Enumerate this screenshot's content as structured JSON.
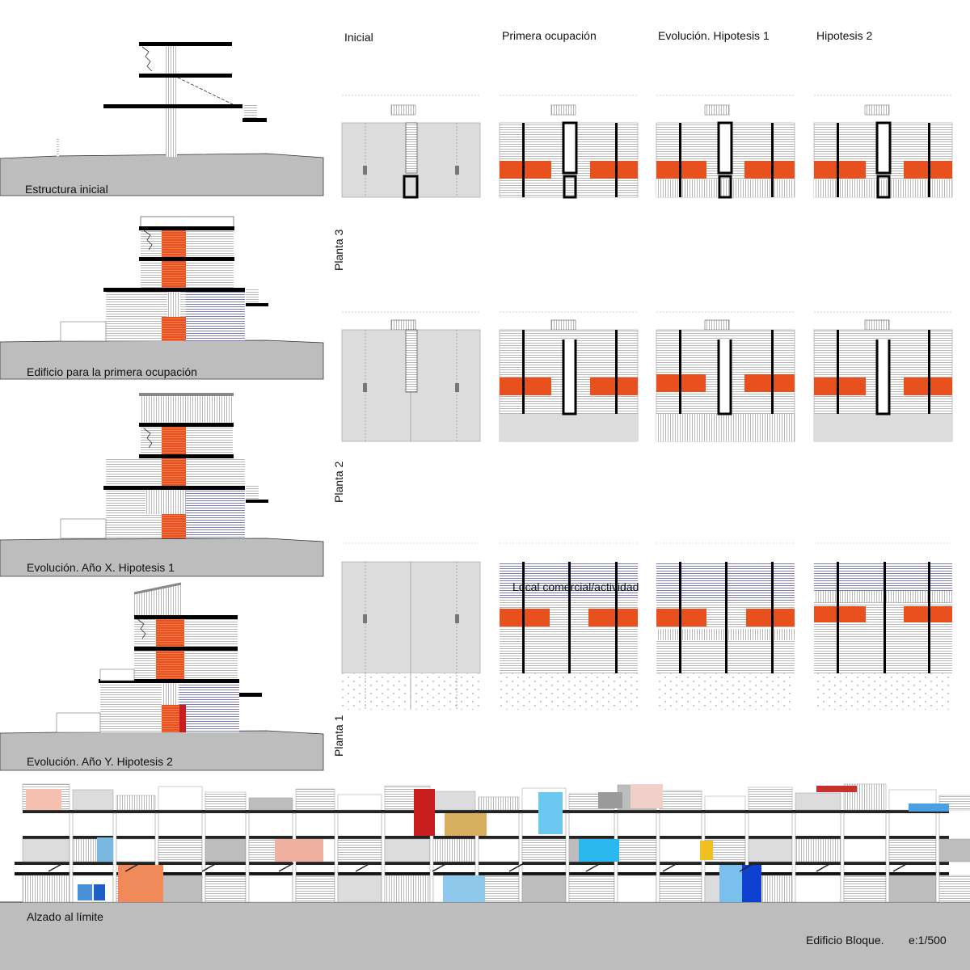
{
  "sections": {
    "estructura_inicial": "Estructura inicial",
    "primera_ocupacion": "Edificio para la primera ocupación",
    "hipotesis1": "Evolución. Año X. Hipotesis 1",
    "hipotesis2": "Evolución. Año Y. Hipotesis 2"
  },
  "columns": [
    "Inicial",
    "Primera ocupación",
    "Evolución. Hipotesis 1",
    "Hipotesis 2"
  ],
  "floors": [
    "Planta 3",
    "Planta 2",
    "Planta 1"
  ],
  "annotation": "Local comercial/actividad",
  "elevation_label": "Alzado al límite",
  "footer": {
    "title": "Edificio Bloque.",
    "scale": "e:1/500"
  },
  "colors": {
    "accent": "#e8501e",
    "blue": "#5a5aa8",
    "grey": "#bdbdbd",
    "light": "#dcdcdc"
  }
}
